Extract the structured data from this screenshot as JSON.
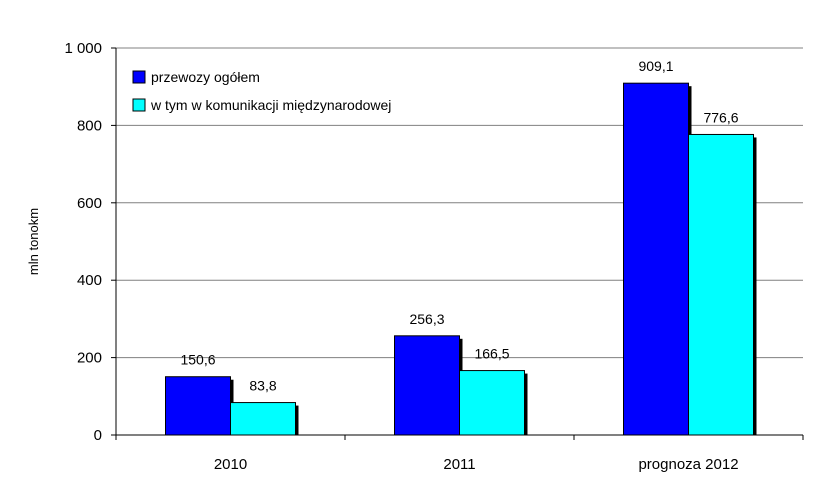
{
  "chart_data": {
    "type": "bar",
    "categories": [
      "2010",
      "2011",
      "prognoza 2012"
    ],
    "series": [
      {
        "name": "przewozy ogółem",
        "values": [
          150.6,
          256.3,
          909.1
        ],
        "labels": [
          "150,6",
          "256,3",
          "909,1"
        ],
        "color": "#0000FF"
      },
      {
        "name": "w tym w komunikacji międzynarodowej",
        "values": [
          83.8,
          166.5,
          776.6
        ],
        "labels": [
          "83,8",
          "166,5",
          "776,6"
        ],
        "color": "#00FFFF"
      }
    ],
    "title": "",
    "xlabel": "",
    "ylabel": "mln tonokm",
    "ylim": [
      0,
      1000
    ],
    "yticks": [
      0,
      200,
      400,
      600,
      800,
      1000
    ],
    "ytick_labels": [
      "0",
      "200",
      "400",
      "600",
      "800",
      "1 000"
    ],
    "grid": true,
    "legend_position": "top-left"
  }
}
